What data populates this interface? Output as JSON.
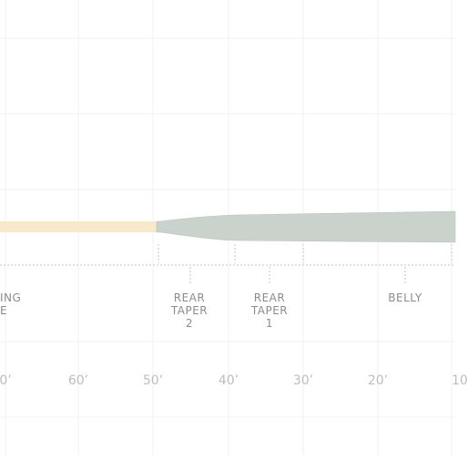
{
  "colors": {
    "grid": "#f1f1f1",
    "running_line": "#f8e9c8",
    "head": "#c9d3cb",
    "head_edge": "#b8c4bb",
    "dotted": "#c4c4c4",
    "tick": "#c4c4c4",
    "label": "#8c8c8c",
    "ruler": "#bdbdbd"
  },
  "segments": [
    {
      "id": "running-line",
      "lines": [
        "ING",
        "E"
      ]
    },
    {
      "id": "rear-taper-2",
      "lines": [
        "REAR",
        "TAPER",
        "2"
      ]
    },
    {
      "id": "rear-taper-1",
      "lines": [
        "REAR",
        "TAPER",
        "1"
      ]
    },
    {
      "id": "belly",
      "lines": [
        "BELLY"
      ]
    }
  ],
  "ruler": [
    "0’",
    "60’",
    "50’",
    "40’",
    "30’",
    "20’",
    "10"
  ]
}
